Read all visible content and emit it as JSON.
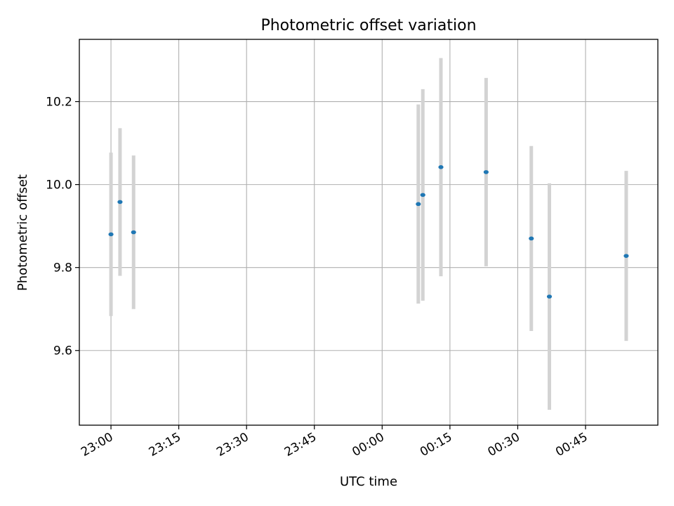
{
  "chart_data": {
    "type": "scatter",
    "title": "Photometric offset variation",
    "xlabel": "UTC time",
    "ylabel": "Photometric offset",
    "x_ticks": [
      "23:00",
      "23:15",
      "23:30",
      "23:45",
      "00:00",
      "00:15",
      "00:30",
      "00:45"
    ],
    "x_tick_times": [
      "22:59",
      "23:14",
      "23:29",
      "23:44",
      "23:59",
      "00:14",
      "00:29",
      "00:44"
    ],
    "x_range": [
      "22:52",
      "01:00"
    ],
    "y_ticks": [
      "9.6",
      "9.8",
      "10.0",
      "10.2"
    ],
    "ylim": [
      9.42,
      10.35
    ],
    "grid": true,
    "errorbar_color": "#d3d3d3",
    "point_color": "#1f77b4",
    "points": [
      {
        "x": "22:59",
        "y": 9.88,
        "err": 0.197
      },
      {
        "x": "23:01",
        "y": 9.958,
        "err": 0.178
      },
      {
        "x": "23:04",
        "y": 9.885,
        "err": 0.185
      },
      {
        "x": "00:07",
        "y": 9.953,
        "err": 0.24
      },
      {
        "x": "00:08",
        "y": 9.975,
        "err": 0.255
      },
      {
        "x": "00:12",
        "y": 10.042,
        "err": 0.263
      },
      {
        "x": "00:22",
        "y": 10.03,
        "err": 0.227
      },
      {
        "x": "00:32",
        "y": 9.87,
        "err": 0.223
      },
      {
        "x": "00:36",
        "y": 9.73,
        "err": 0.273
      },
      {
        "x": "00:53",
        "y": 9.828,
        "err": 0.205
      }
    ]
  }
}
